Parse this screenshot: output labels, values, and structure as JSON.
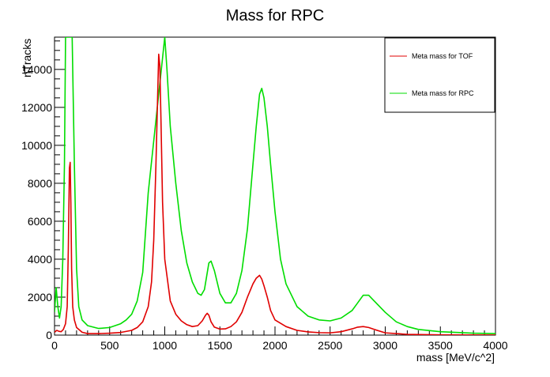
{
  "chart_data": {
    "type": "line",
    "title": "Mass for RPC",
    "xlabel": "mass [MeV/c^2]",
    "ylabel": "nTracks",
    "xlim": [
      0,
      4000
    ],
    "ylim": [
      0,
      15700
    ],
    "x_ticks": [
      0,
      500,
      1000,
      1500,
      2000,
      2500,
      3000,
      3500,
      4000
    ],
    "y_ticks": [
      0,
      2000,
      4000,
      6000,
      8000,
      10000,
      12000,
      14000
    ],
    "x_tick_labels": [
      "0",
      "500",
      "1000",
      "1500",
      "2000",
      "2500",
      "3000",
      "3500",
      "4000"
    ],
    "y_tick_labels": [
      "0",
      "2000",
      "4000",
      "6000",
      "8000",
      "10000",
      "12000",
      "14000"
    ],
    "grid": false,
    "legend_position": "top-right",
    "legend": [
      "Meta mass for TOF",
      "Meta mass for RPC"
    ],
    "series": [
      {
        "name": "Meta mass for TOF",
        "color": "#e00000",
        "x": [
          0,
          20,
          40,
          60,
          80,
          100,
          115,
          125,
          135,
          142,
          148,
          155,
          165,
          180,
          200,
          250,
          300,
          400,
          500,
          600,
          700,
          750,
          800,
          850,
          880,
          900,
          920,
          935,
          945,
          955,
          965,
          980,
          1000,
          1050,
          1100,
          1150,
          1200,
          1250,
          1300,
          1340,
          1370,
          1385,
          1400,
          1420,
          1450,
          1500,
          1550,
          1600,
          1650,
          1700,
          1750,
          1800,
          1830,
          1860,
          1880,
          1900,
          1930,
          1960,
          2000,
          2100,
          2200,
          2300,
          2400,
          2500,
          2600,
          2700,
          2750,
          2800,
          2850,
          2900,
          3000,
          3200,
          3500,
          4000
        ],
        "y": [
          150,
          250,
          200,
          180,
          300,
          600,
          1500,
          4500,
          8800,
          9100,
          7000,
          3500,
          1500,
          800,
          400,
          150,
          80,
          80,
          100,
          140,
          250,
          400,
          700,
          1500,
          2800,
          5000,
          9000,
          12500,
          14800,
          14200,
          11500,
          7000,
          4000,
          1800,
          1100,
          750,
          550,
          450,
          500,
          750,
          1050,
          1150,
          1050,
          700,
          420,
          320,
          330,
          450,
          700,
          1200,
          2000,
          2700,
          3000,
          3150,
          2950,
          2600,
          2000,
          1300,
          800,
          450,
          250,
          170,
          130,
          120,
          180,
          330,
          420,
          450,
          400,
          300,
          120,
          40,
          15,
          5
        ]
      },
      {
        "name": "Meta mass for RPC",
        "color": "#00dd00",
        "x": [
          0,
          15,
          30,
          45,
          60,
          75,
          90,
          100,
          110,
          120,
          130,
          160,
          180,
          200,
          220,
          250,
          300,
          400,
          500,
          600,
          650,
          700,
          750,
          800,
          850,
          1000,
          1020,
          1050,
          1100,
          1150,
          1200,
          1250,
          1300,
          1330,
          1360,
          1380,
          1400,
          1420,
          1450,
          1500,
          1550,
          1600,
          1650,
          1700,
          1750,
          1800,
          1830,
          1860,
          1880,
          1900,
          1930,
          1960,
          2000,
          2050,
          2100,
          2200,
          2300,
          2400,
          2500,
          2600,
          2700,
          2750,
          2800,
          2850,
          2900,
          3000,
          3100,
          3200,
          3300,
          3500,
          3800,
          4000
        ],
        "y": [
          1200,
          2500,
          1500,
          900,
          1500,
          4000,
          9000,
          15700,
          15700,
          15700,
          15700,
          15700,
          9000,
          3500,
          1500,
          800,
          500,
          350,
          400,
          600,
          800,
          1100,
          1800,
          3300,
          7500,
          15700,
          14000,
          11000,
          8000,
          5500,
          3800,
          2800,
          2200,
          2100,
          2400,
          3100,
          3800,
          3900,
          3400,
          2200,
          1700,
          1700,
          2200,
          3400,
          5600,
          9000,
          11000,
          12700,
          13000,
          12500,
          11000,
          9000,
          6500,
          4000,
          2700,
          1500,
          1000,
          800,
          750,
          900,
          1300,
          1700,
          2100,
          2100,
          1800,
          1200,
          700,
          450,
          300,
          180,
          100,
          80
        ]
      }
    ]
  }
}
